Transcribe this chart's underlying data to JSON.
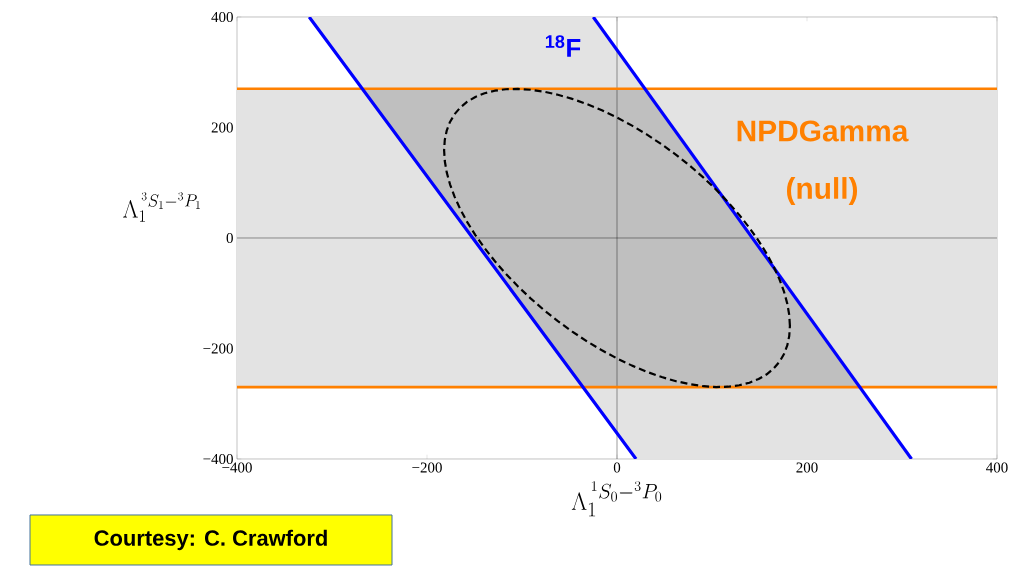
{
  "chart_data": {
    "type": "line",
    "xlabel": "\\Lambda_1^{\\,{}^1S_0-{}^3P_0}",
    "ylabel": "\\Lambda_1^{\\,{}^3S_1-{}^3P_1}",
    "xlim": [
      -400,
      400
    ],
    "ylim": [
      -400,
      400
    ],
    "xticks": [
      {
        "value": -400,
        "label": "−400"
      },
      {
        "value": -200,
        "label": "−200"
      },
      0,
      200,
      400
    ],
    "yticks": [
      {
        "value": -400,
        "label": "−400"
      },
      {
        "value": -200,
        "label": "−200"
      },
      0,
      200,
      400
    ],
    "series": [
      {
        "color": "#0000ff",
        "x": [
          -324,
          -25,
          20,
          310
        ],
        "values": [
          400,
          -295,
          -400,
          null
        ],
        "lower": [
          400,
          -295,
          -400,
          -400
        ],
        "upper": [
          400,
          400,
          293,
          -400
        ]
      },
      {
        "color": "#0000ff",
        "x": [
          -25,
          310
        ],
        "values": [
          400,
          -400
        ]
      }
    ],
    "bands": [
      {
        "axis": "y",
        "from": -270,
        "to": 270,
        "color": "#e3e3e3"
      }
    ],
    "ref_lines": [
      {
        "axis": "x",
        "value": 0,
        "color": "#000000"
      },
      {
        "axis": "y",
        "value": 0,
        "color": "#000000"
      },
      {
        "axis": "y",
        "value": 270,
        "color": "#ff8000"
      },
      {
        "axis": "y",
        "value": -270,
        "color": "#ff8000"
      }
    ],
    "annotations": [
      "$^{18}$F",
      "NPDGamma",
      "(null)",
      "Courtesy: C. Crawford"
    ]
  }
}
